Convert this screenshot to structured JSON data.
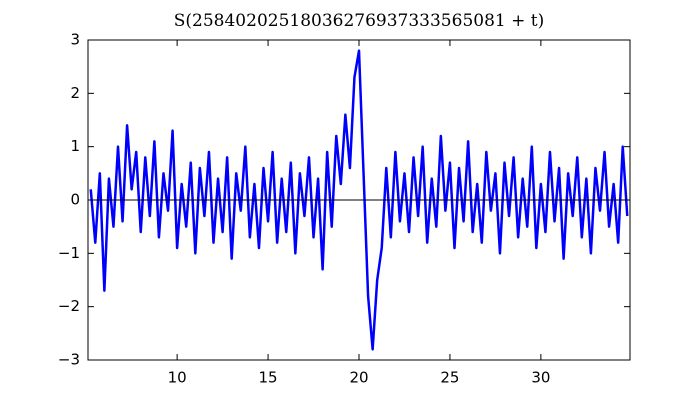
{
  "chart_data": {
    "type": "line",
    "title": "S(25840202518036276937333565081 + t)",
    "x": [
      5.25,
      5.5,
      5.75,
      6,
      6.25,
      6.5,
      6.75,
      7,
      7.25,
      7.5,
      7.75,
      8,
      8.25,
      8.5,
      8.75,
      9,
      9.25,
      9.5,
      9.75,
      10,
      10.25,
      10.5,
      10.75,
      11,
      11.25,
      11.5,
      11.75,
      12,
      12.25,
      12.5,
      12.75,
      13,
      13.25,
      13.5,
      13.75,
      14,
      14.25,
      14.5,
      14.75,
      15,
      15.25,
      15.5,
      15.75,
      16,
      16.25,
      16.5,
      16.75,
      17,
      17.25,
      17.5,
      17.75,
      18,
      18.25,
      18.5,
      18.75,
      19,
      19.25,
      19.5,
      19.75,
      20,
      20.25,
      20.5,
      20.75,
      21,
      21.25,
      21.5,
      21.75,
      22,
      22.25,
      22.5,
      22.75,
      23,
      23.25,
      23.5,
      23.75,
      24,
      24.25,
      24.5,
      24.75,
      25,
      25.25,
      25.5,
      25.75,
      26,
      26.25,
      26.5,
      26.75,
      27,
      27.25,
      27.5,
      27.75,
      28,
      28.25,
      28.5,
      28.75,
      29,
      29.25,
      29.5,
      29.75,
      30,
      30.25,
      30.5,
      30.75,
      31,
      31.25,
      31.5,
      31.75,
      32,
      32.25,
      32.5,
      32.75,
      33,
      33.25,
      33.5,
      33.75,
      34,
      34.25,
      34.5,
      34.75
    ],
    "values": [
      0.2,
      -0.8,
      0.5,
      -1.7,
      0.4,
      -0.5,
      1.0,
      -0.4,
      1.4,
      0.2,
      0.9,
      -0.6,
      0.8,
      -0.3,
      1.1,
      -0.7,
      0.5,
      -0.2,
      1.3,
      -0.9,
      0.3,
      -0.5,
      0.7,
      -1.0,
      0.6,
      -0.3,
      0.9,
      -0.8,
      0.4,
      -0.6,
      0.8,
      -1.1,
      0.5,
      -0.2,
      1.0,
      -0.7,
      0.3,
      -0.9,
      0.6,
      -0.4,
      0.9,
      -0.8,
      0.4,
      -0.6,
      0.7,
      -1.0,
      0.5,
      -0.3,
      0.8,
      -0.7,
      0.4,
      -1.3,
      0.9,
      -0.5,
      1.2,
      0.3,
      1.6,
      0.6,
      2.3,
      2.8,
      0.5,
      -1.8,
      -2.8,
      -1.5,
      -0.9,
      0.6,
      -0.7,
      0.9,
      -0.4,
      0.5,
      -0.6,
      0.8,
      -0.3,
      1.0,
      -0.8,
      0.4,
      -0.5,
      1.2,
      -0.2,
      0.7,
      -0.9,
      0.6,
      -0.4,
      1.1,
      -0.6,
      0.3,
      -0.8,
      0.9,
      -0.2,
      0.5,
      -1.0,
      0.7,
      -0.3,
      0.8,
      -0.7,
      0.4,
      -0.5,
      1.0,
      -0.9,
      0.3,
      -0.6,
      0.9,
      -0.4,
      0.6,
      -1.1,
      0.5,
      -0.3,
      0.8,
      -0.7,
      0.4,
      -1.0,
      0.6,
      -0.2,
      0.9,
      -0.5,
      0.3,
      -0.8,
      1.0,
      -0.3
    ],
    "color": "#0000ff",
    "hline": 0,
    "xlim": [
      5.1,
      34.9
    ],
    "ylim": [
      -3,
      3
    ],
    "xticks": [
      10,
      15,
      20,
      25,
      30
    ],
    "yticks": [
      {
        "value": -3,
        "label": "−3"
      },
      {
        "value": -2,
        "label": "−2"
      },
      {
        "value": -1,
        "label": "−1"
      },
      0,
      1,
      2,
      3
    ]
  }
}
